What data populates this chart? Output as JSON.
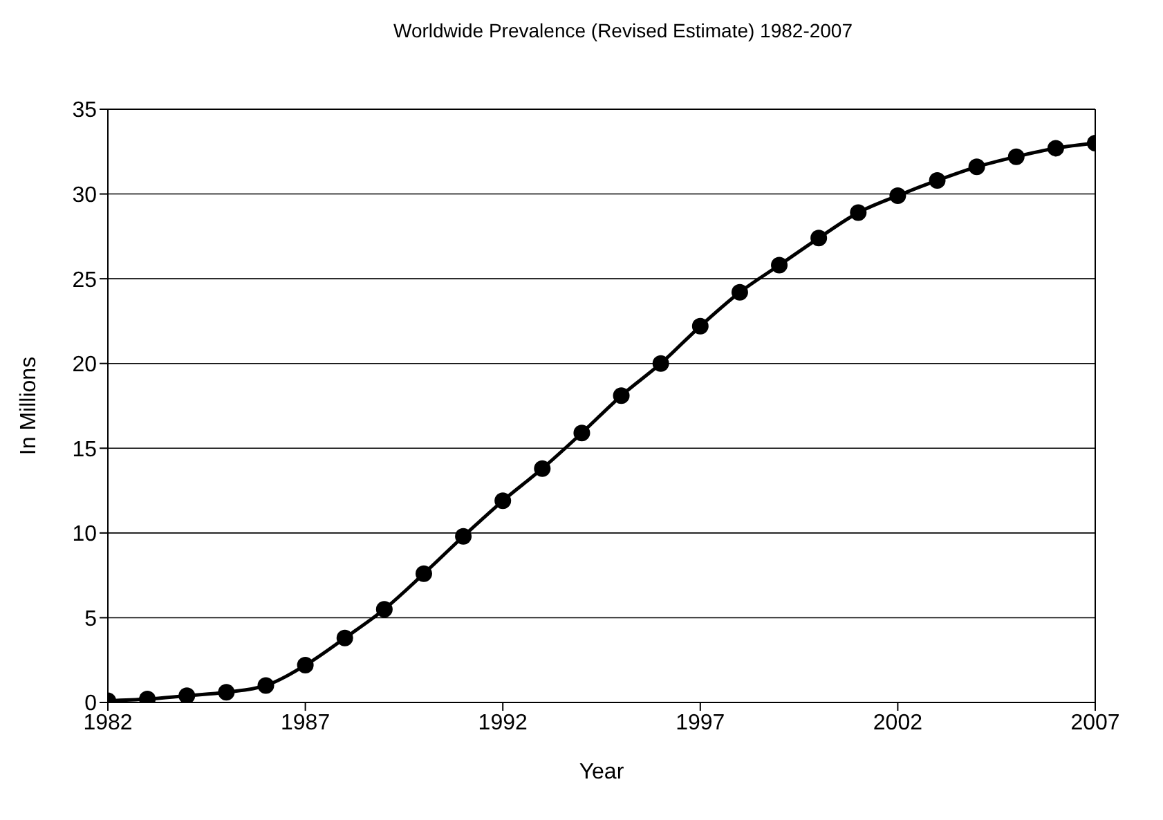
{
  "chart_data": {
    "type": "line",
    "title": "Worldwide Prevalence (Revised Estimate) 1982-2007",
    "xlabel": "Year",
    "ylabel": "In Millions",
    "x": [
      1982,
      1983,
      1984,
      1985,
      1986,
      1987,
      1988,
      1989,
      1990,
      1991,
      1992,
      1993,
      1994,
      1995,
      1996,
      1997,
      1998,
      1999,
      2000,
      2001,
      2002,
      2003,
      2004,
      2005,
      2006,
      2007
    ],
    "series": [
      {
        "color": "#000000",
        "values": [
          0.1,
          0.2,
          0.4,
          0.6,
          1.0,
          2.2,
          3.8,
          5.5,
          7.6,
          9.8,
          11.9,
          13.8,
          15.9,
          18.1,
          20.0,
          22.2,
          24.2,
          25.8,
          27.4,
          28.9,
          29.9,
          30.8,
          31.6,
          32.2,
          32.7,
          33.0
        ]
      }
    ],
    "xlim": [
      1982,
      2007
    ],
    "xticks": [
      1982,
      1987,
      1992,
      1997,
      2002,
      2007
    ],
    "ylim": [
      0,
      35
    ],
    "yticks": [
      0,
      5,
      10,
      15,
      20,
      25,
      30,
      35
    ],
    "grid": "y",
    "marker": "circle",
    "line_style": "solid"
  }
}
